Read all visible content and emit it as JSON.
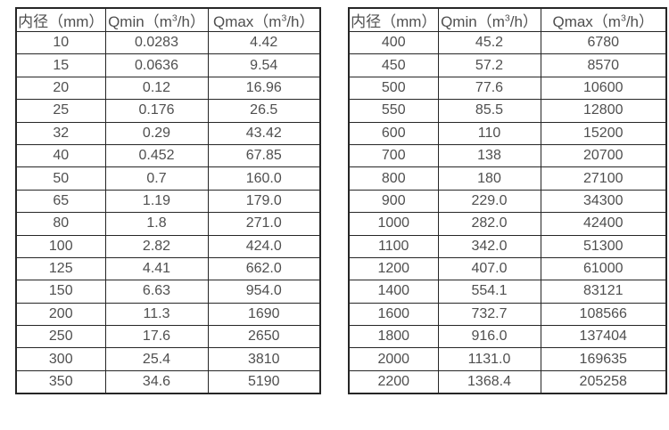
{
  "page": {
    "background_color": "#ffffff",
    "border_color": "#262626",
    "text_color": "#4f4f4f"
  },
  "chart_data": [
    {
      "type": "table",
      "name": "flow-table-small-diameter",
      "columns": [
        {
          "name": "column-header-diameter",
          "label": "内径（mm）",
          "segments": [
            {
              "t": "内径（mm）"
            }
          ]
        },
        {
          "name": "column-header-qmin",
          "label": "Qmin（m³/h）",
          "segments": [
            {
              "t": "Qmin（m"
            },
            {
              "t": "3",
              "sup": true
            },
            {
              "t": "/h）"
            }
          ]
        },
        {
          "name": "column-header-qmax",
          "label": "Qmax（m³/h）",
          "segments": [
            {
              "t": "Qmax（m"
            },
            {
              "t": "3",
              "sup": true
            },
            {
              "t": "/h）"
            }
          ]
        }
      ],
      "rows": [
        [
          "10",
          "0.0283",
          "4.42"
        ],
        [
          "15",
          "0.0636",
          "9.54"
        ],
        [
          "20",
          "0.12",
          "16.96"
        ],
        [
          "25",
          "0.176",
          "26.5"
        ],
        [
          "32",
          "0.29",
          "43.42"
        ],
        [
          "40",
          "0.452",
          "67.85"
        ],
        [
          "50",
          "0.7",
          "160.0"
        ],
        [
          "65",
          "1.19",
          "179.0"
        ],
        [
          "80",
          "1.8",
          "271.0"
        ],
        [
          "100",
          "2.82",
          "424.0"
        ],
        [
          "125",
          "4.41",
          "662.0"
        ],
        [
          "150",
          "6.63",
          "954.0"
        ],
        [
          "200",
          "11.3",
          "1690"
        ],
        [
          "250",
          "17.6",
          "2650"
        ],
        [
          "300",
          "25.4",
          "3810"
        ],
        [
          "350",
          "34.6",
          "5190"
        ]
      ]
    },
    {
      "type": "table",
      "name": "flow-table-large-diameter",
      "columns": [
        {
          "name": "column-header-diameter",
          "label": "内径（mm）",
          "segments": [
            {
              "t": "内径（mm）"
            }
          ]
        },
        {
          "name": "column-header-qmin",
          "label": "Qmin（m³/h）",
          "segments": [
            {
              "t": "Qmin（m"
            },
            {
              "t": "3",
              "sup": true
            },
            {
              "t": "/h）"
            }
          ]
        },
        {
          "name": "column-header-qmax",
          "label": "Qmax（m³/h）",
          "segments": [
            {
              "t": "Qmax（m"
            },
            {
              "t": "3",
              "sup": true
            },
            {
              "t": "/h）"
            }
          ]
        }
      ],
      "rows": [
        [
          "400",
          "45.2",
          "6780"
        ],
        [
          "450",
          "57.2",
          "8570"
        ],
        [
          "500",
          "77.6",
          "10600"
        ],
        [
          "550",
          "85.5",
          "12800"
        ],
        [
          "600",
          "110",
          "15200"
        ],
        [
          "700",
          "138",
          "20700"
        ],
        [
          "800",
          "180",
          "27100"
        ],
        [
          "900",
          "229.0",
          "34300"
        ],
        [
          "1000",
          "282.0",
          "42400"
        ],
        [
          "1100",
          "342.0",
          "51300"
        ],
        [
          "1200",
          "407.0",
          "61000"
        ],
        [
          "1400",
          "554.1",
          "83121"
        ],
        [
          "1600",
          "732.7",
          "108566"
        ],
        [
          "1800",
          "916.0",
          "137404"
        ],
        [
          "2000",
          "1131.0",
          "169635"
        ],
        [
          "2200",
          "1368.4",
          "205258"
        ]
      ]
    }
  ]
}
